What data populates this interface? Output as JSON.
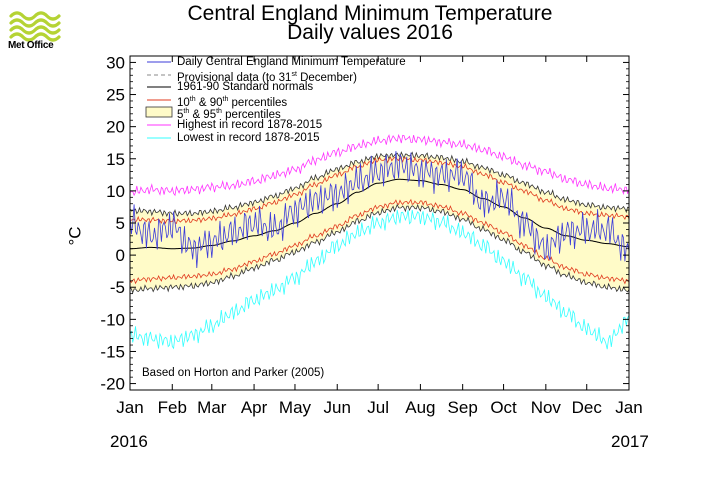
{
  "branding": {
    "logo_text": "Met Office"
  },
  "title_line1": "Central England Minimum Temperature",
  "title_line2": "Daily values 2016",
  "ylabel": "°C",
  "years": {
    "start": "2016",
    "end": "2017"
  },
  "note": "Based on Horton and Parker (2005)",
  "legend": [
    {
      "key": "daily",
      "text": "Daily Central England Minimum Temperature",
      "color": "#3b3bd9"
    },
    {
      "key": "provisional",
      "text": "Provisional data (to 31",
      "sup": "st",
      "suffix": " December)",
      "color": "#888888"
    },
    {
      "key": "normals",
      "text": "1961-90 Standard normals",
      "color": "#000000"
    },
    {
      "key": "p10_90",
      "text": "10",
      "sup": "th",
      "suffix": " & 90",
      "sup2": "th",
      "suffix2": " percentiles",
      "color": "#e03a1e"
    },
    {
      "key": "p5_95",
      "text": "5",
      "sup": "th",
      "suffix": " & 95",
      "sup2": "th",
      "suffix2": " percentiles",
      "color": "#fffbc8"
    },
    {
      "key": "highest",
      "text": "Highest in record 1878-2015",
      "color": "#ff33ff"
    },
    {
      "key": "lowest",
      "text": "Lowest in record 1878-2015",
      "color": "#33ffff"
    }
  ],
  "chart_data": {
    "type": "line",
    "title": "Central England Minimum Temperature Daily values 2016",
    "xlabel": "",
    "ylabel": "°C",
    "ylim": [
      -21,
      31
    ],
    "yticks": [
      30,
      25,
      20,
      15,
      10,
      5,
      0,
      -5,
      -10,
      -15,
      -20
    ],
    "x_month_labels": [
      "Jan",
      "Feb",
      "Mar",
      "Apr",
      "May",
      "Jun",
      "Jul",
      "Aug",
      "Sep",
      "Oct",
      "Nov",
      "Dec",
      "Jan"
    ],
    "x_month_start_day": [
      0,
      31,
      60,
      91,
      121,
      152,
      182,
      213,
      244,
      274,
      305,
      335,
      366
    ],
    "x_days": [
      0,
      15,
      31,
      46,
      60,
      75,
      91,
      106,
      121,
      136,
      152,
      167,
      182,
      197,
      213,
      228,
      244,
      259,
      274,
      289,
      305,
      320,
      335,
      350,
      366
    ],
    "series": [
      {
        "name": "1961-90 Standard normals",
        "values": [
          1.0,
          1.2,
          1.0,
          1.1,
          1.5,
          2.2,
          3.0,
          3.8,
          5.0,
          6.5,
          8.0,
          9.8,
          11.2,
          11.8,
          11.6,
          11.0,
          10.2,
          8.8,
          7.5,
          5.8,
          4.2,
          3.0,
          2.3,
          1.8,
          1.3
        ]
      },
      {
        "name": "10th percentile",
        "values": [
          -4.0,
          -3.7,
          -3.5,
          -3.3,
          -3.0,
          -2.2,
          -1.0,
          0.2,
          1.5,
          3.0,
          4.5,
          6.2,
          7.5,
          8.2,
          8.2,
          7.6,
          6.5,
          5.0,
          3.5,
          1.5,
          -0.5,
          -2.0,
          -3.0,
          -3.6,
          -4.0
        ]
      },
      {
        "name": "90th percentile",
        "values": [
          5.5,
          5.5,
          5.3,
          5.4,
          5.7,
          6.3,
          7.2,
          8.2,
          9.4,
          11.0,
          12.5,
          13.8,
          14.8,
          15.0,
          14.8,
          14.4,
          13.8,
          12.6,
          11.3,
          10.0,
          8.5,
          7.2,
          6.5,
          6.2,
          6.0
        ]
      },
      {
        "name": "5th percentile",
        "values": [
          -5.5,
          -5.2,
          -5.0,
          -4.8,
          -4.3,
          -3.3,
          -2.0,
          -0.8,
          0.5,
          2.0,
          3.6,
          5.3,
          6.6,
          7.4,
          7.4,
          6.8,
          5.6,
          4.0,
          2.4,
          0.5,
          -1.6,
          -3.2,
          -4.3,
          -5.0,
          -5.5
        ]
      },
      {
        "name": "95th percentile",
        "values": [
          7.0,
          6.8,
          6.5,
          6.5,
          6.8,
          7.4,
          8.2,
          9.2,
          10.4,
          12.0,
          13.4,
          14.5,
          15.4,
          15.6,
          15.5,
          15.2,
          14.6,
          13.6,
          12.5,
          11.2,
          9.8,
          8.6,
          7.8,
          7.4,
          7.2
        ]
      },
      {
        "name": "Highest in record 1878-2015",
        "values": [
          9.8,
          10.2,
          10.0,
          10.2,
          10.6,
          10.8,
          11.5,
          12.4,
          13.3,
          14.8,
          16.0,
          17.0,
          17.8,
          18.2,
          18.0,
          17.6,
          17.2,
          16.4,
          15.3,
          14.0,
          13.0,
          11.8,
          11.0,
          10.4,
          10.2
        ]
      },
      {
        "name": "Lowest in record 1878-2015",
        "values": [
          -12.5,
          -13.0,
          -13.5,
          -12.5,
          -11.0,
          -9.0,
          -7.0,
          -5.5,
          -3.5,
          -1.0,
          1.5,
          3.5,
          5.0,
          6.0,
          6.0,
          5.2,
          3.5,
          1.5,
          -1.0,
          -3.5,
          -6.5,
          -9.0,
          -11.5,
          -13.5,
          -10.0
        ]
      },
      {
        "name": "Daily Central England Minimum Temperature",
        "values": [
          5.0,
          3.0,
          4.5,
          1.0,
          2.0,
          3.5,
          5.0,
          4.0,
          7.0,
          8.5,
          9.5,
          11.5,
          13.0,
          14.0,
          13.0,
          12.5,
          12.5,
          8.0,
          9.0,
          5.0,
          1.0,
          3.5,
          4.0,
          4.0,
          0.5
        ]
      }
    ]
  },
  "colors": {
    "daily": "#3b3bd9",
    "normals": "#000000",
    "percentile_10_90": "#e03a1e",
    "percentile_5_95_fill": "#fffbc8",
    "percentile_5_95_line": "#333333",
    "highest": "#ff33ff",
    "lowest": "#33ffff",
    "axis": "#000000"
  }
}
